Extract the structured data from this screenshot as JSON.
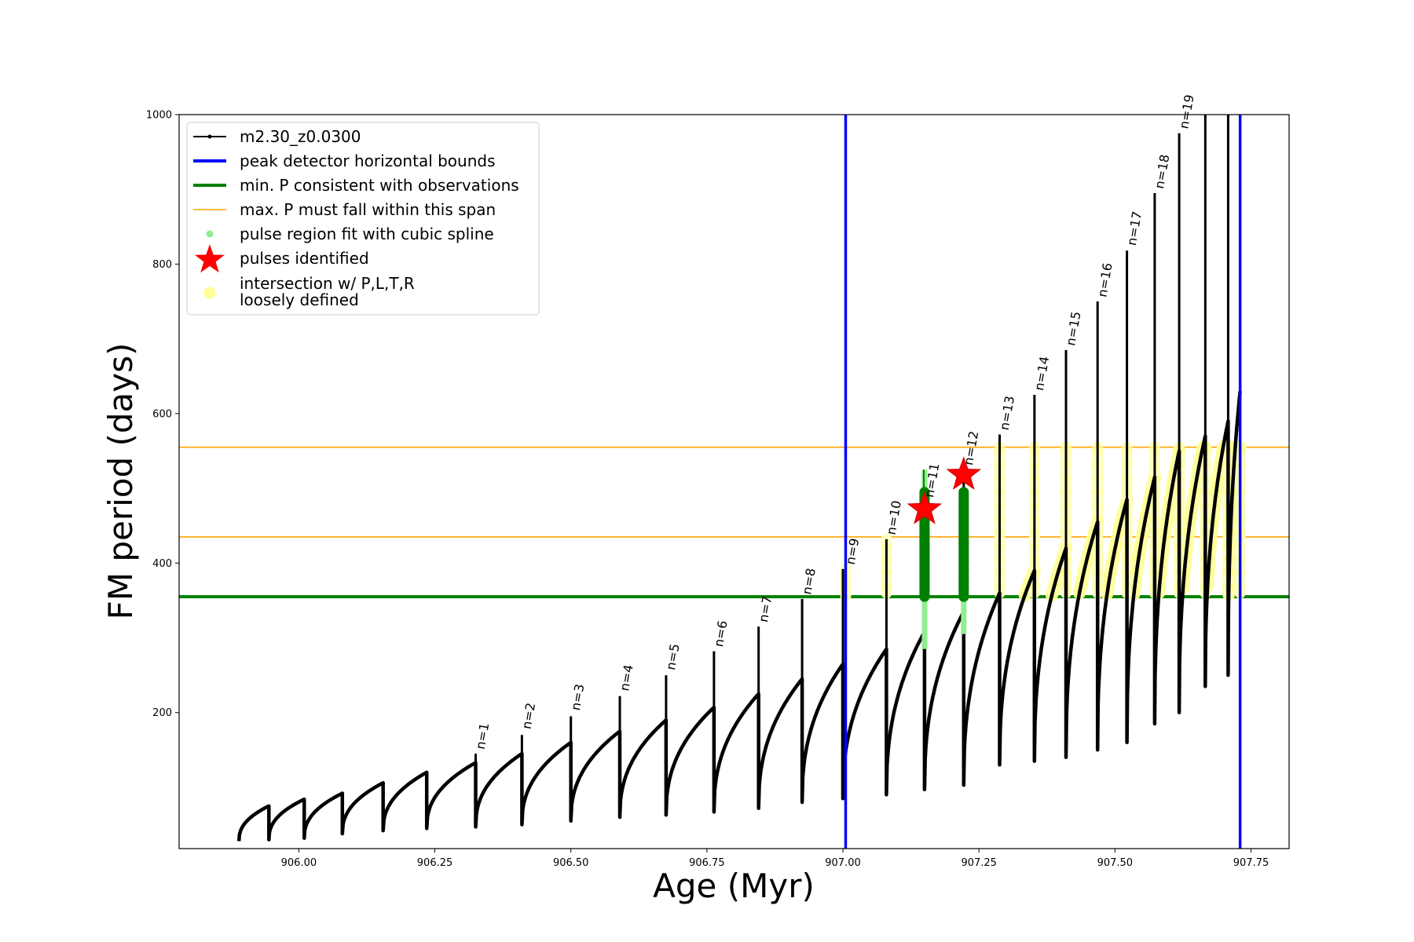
{
  "chart_data": {
    "type": "line",
    "xlabel": "Age (Myr)",
    "ylabel": "FM period (days)",
    "xlim": [
      905.78,
      907.82
    ],
    "ylim": [
      18,
      1000
    ],
    "xticks": [
      906.0,
      906.25,
      906.5,
      906.75,
      907.0,
      907.25,
      907.5,
      907.75
    ],
    "xtick_labels": [
      "906.00",
      "906.25",
      "906.50",
      "906.75",
      "907.00",
      "907.25",
      "907.50",
      "907.75"
    ],
    "yticks": [
      200,
      400,
      600,
      800,
      1000
    ],
    "ytick_labels": [
      "200",
      "400",
      "600",
      "800",
      "1000"
    ],
    "legend_position": "upper-left",
    "legend": [
      {
        "label": "m2.30_z0.0300",
        "kind": "line-marker",
        "color": "#000000"
      },
      {
        "label": "peak detector horizontal bounds",
        "kind": "line",
        "color": "#0000ff"
      },
      {
        "label": "min. P consistent with observations",
        "kind": "line",
        "color": "#008000"
      },
      {
        "label": "max. P must fall within this span",
        "kind": "line",
        "color": "#ffa500"
      },
      {
        "label": "pulse region fit with cubic spline",
        "kind": "dot",
        "color": "#90ee90"
      },
      {
        "label": "pulses identified",
        "kind": "star",
        "color": "#ff0000"
      },
      {
        "label": "intersection w/ P,L,T,R",
        "label2": "loosely defined",
        "kind": "dot",
        "color": "#ffff99"
      }
    ],
    "vertical_bounds": [
      907.005,
      907.73
    ],
    "min_period": 355,
    "max_period_span": [
      435,
      555
    ],
    "cycles": [
      {
        "start": 905.89,
        "end": 905.945,
        "low": 28,
        "high": 75
      },
      {
        "start": 905.945,
        "end": 906.01,
        "low": 30,
        "high": 84
      },
      {
        "start": 906.01,
        "end": 906.08,
        "low": 32,
        "high": 92
      },
      {
        "start": 906.08,
        "end": 906.155,
        "low": 38,
        "high": 106
      },
      {
        "start": 906.155,
        "end": 906.235,
        "low": 42,
        "high": 120
      },
      {
        "start": 906.235,
        "end": 906.325,
        "low": 45,
        "high": 133
      },
      {
        "start": 906.325,
        "end": 906.41,
        "low": 47,
        "high": 145
      },
      {
        "start": 906.41,
        "end": 906.5,
        "low": 50,
        "high": 160
      },
      {
        "start": 906.5,
        "end": 906.59,
        "low": 55,
        "high": 175
      },
      {
        "start": 906.59,
        "end": 906.675,
        "low": 60,
        "high": 190
      },
      {
        "start": 906.675,
        "end": 906.763,
        "low": 63,
        "high": 207
      },
      {
        "start": 906.763,
        "end": 906.845,
        "low": 67,
        "high": 225
      },
      {
        "start": 906.845,
        "end": 906.925,
        "low": 72,
        "high": 245
      },
      {
        "start": 906.925,
        "end": 907.0,
        "low": 80,
        "high": 265
      },
      {
        "start": 907.0,
        "end": 907.08,
        "low": 85,
        "high": 285
      },
      {
        "start": 907.08,
        "end": 907.15,
        "low": 90,
        "high": 308
      },
      {
        "start": 907.15,
        "end": 907.222,
        "low": 97,
        "high": 335
      },
      {
        "start": 907.222,
        "end": 907.288,
        "low": 103,
        "high": 360
      },
      {
        "start": 907.288,
        "end": 907.352,
        "low": 130,
        "high": 390
      },
      {
        "start": 907.352,
        "end": 907.41,
        "low": 135,
        "high": 420
      },
      {
        "start": 907.41,
        "end": 907.468,
        "low": 140,
        "high": 455
      },
      {
        "start": 907.468,
        "end": 907.522,
        "low": 150,
        "high": 485
      },
      {
        "start": 907.522,
        "end": 907.573,
        "low": 160,
        "high": 515
      },
      {
        "start": 907.573,
        "end": 907.618,
        "low": 185,
        "high": 550
      },
      {
        "start": 907.618,
        "end": 907.666,
        "low": 200,
        "high": 570
      },
      {
        "start": 907.666,
        "end": 907.708,
        "low": 235,
        "high": 590
      },
      {
        "start": 907.708,
        "end": 907.73,
        "low": 250,
        "high": 630
      }
    ],
    "spikes": [
      {
        "x": 906.325,
        "top": 145
      },
      {
        "x": 906.41,
        "top": 170
      },
      {
        "x": 906.5,
        "top": 195
      },
      {
        "x": 906.59,
        "top": 222
      },
      {
        "x": 906.675,
        "top": 250
      },
      {
        "x": 906.763,
        "top": 282
      },
      {
        "x": 906.845,
        "top": 315
      },
      {
        "x": 906.925,
        "top": 352
      },
      {
        "x": 907.0,
        "top": 392
      },
      {
        "x": 907.08,
        "top": 432
      },
      {
        "x": 907.15,
        "top": 482
      },
      {
        "x": 907.222,
        "top": 525
      },
      {
        "x": 907.288,
        "top": 572
      },
      {
        "x": 907.352,
        "top": 625
      },
      {
        "x": 907.41,
        "top": 685
      },
      {
        "x": 907.468,
        "top": 750
      },
      {
        "x": 907.522,
        "top": 818
      },
      {
        "x": 907.573,
        "top": 895
      },
      {
        "x": 907.618,
        "top": 975
      },
      {
        "x": 907.666,
        "top": 1000
      },
      {
        "x": 907.708,
        "top": 1000
      }
    ],
    "n_labels": [
      {
        "text": "n=1",
        "x": 906.325,
        "y": 148
      },
      {
        "text": "n=2",
        "x": 906.41,
        "y": 175
      },
      {
        "text": "n=3",
        "x": 906.5,
        "y": 200
      },
      {
        "text": "n=4",
        "x": 906.59,
        "y": 226
      },
      {
        "text": "n=5",
        "x": 906.675,
        "y": 254
      },
      {
        "text": "n=6",
        "x": 906.763,
        "y": 285
      },
      {
        "text": "n=7",
        "x": 906.845,
        "y": 318
      },
      {
        "text": "n=8",
        "x": 906.925,
        "y": 355
      },
      {
        "text": "n=9",
        "x": 907.005,
        "y": 395
      },
      {
        "text": "n=10",
        "x": 907.08,
        "y": 435
      },
      {
        "text": "n=11",
        "x": 907.15,
        "y": 485
      },
      {
        "text": "n=12",
        "x": 907.222,
        "y": 528
      },
      {
        "text": "n=13",
        "x": 907.288,
        "y": 575
      },
      {
        "text": "n=14",
        "x": 907.352,
        "y": 628
      },
      {
        "text": "n=15",
        "x": 907.41,
        "y": 688
      },
      {
        "text": "n=16",
        "x": 907.468,
        "y": 753
      },
      {
        "text": "n=17",
        "x": 907.522,
        "y": 822
      },
      {
        "text": "n=18",
        "x": 907.573,
        "y": 898
      },
      {
        "text": "n=19",
        "x": 907.618,
        "y": 978
      }
    ],
    "green_pulses": [
      {
        "x": 907.15,
        "low": 355,
        "high": 495,
        "spline_low": 285,
        "spline_high": 525
      },
      {
        "x": 907.222,
        "low": 355,
        "high": 495,
        "spline_low": 305,
        "spline_high": 500
      }
    ],
    "pulse_stars": [
      {
        "x": 907.15,
        "y": 472
      },
      {
        "x": 907.222,
        "y": 518
      }
    ],
    "yellow_vertical": [
      {
        "x": 907.005,
        "low": 355,
        "high": 392
      },
      {
        "x": 907.08,
        "low": 360,
        "high": 432
      },
      {
        "x": 907.288,
        "low": 360,
        "high": 555
      },
      {
        "x": 907.352,
        "low": 360,
        "high": 555
      },
      {
        "x": 907.41,
        "low": 360,
        "high": 555
      },
      {
        "x": 907.468,
        "low": 360,
        "high": 555
      },
      {
        "x": 907.522,
        "low": 360,
        "high": 555
      },
      {
        "x": 907.573,
        "low": 360,
        "high": 555
      },
      {
        "x": 907.618,
        "low": 360,
        "high": 555
      },
      {
        "x": 907.666,
        "low": 360,
        "high": 555
      },
      {
        "x": 907.708,
        "low": 360,
        "high": 555
      },
      {
        "x": 907.73,
        "low": 360,
        "high": 555
      }
    ]
  }
}
